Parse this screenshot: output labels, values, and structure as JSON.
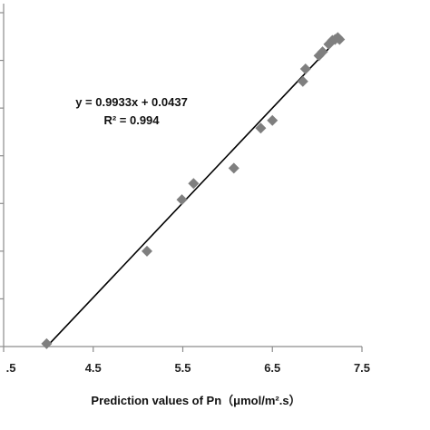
{
  "chart_data": {
    "type": "scatter",
    "title": "",
    "xlabel": "Prediction values of Pn（μmol/m².s）",
    "ylabel": "",
    "xlim": [
      3.5,
      7.5
    ],
    "ylim": [
      4.0,
      7.5
    ],
    "x_ticks": [
      ".5",
      "4.5",
      "5.5",
      "6.5",
      "7.5"
    ],
    "grid": false,
    "legend": "none",
    "marker": "diamond",
    "marker_color": "#7f7f7f",
    "trendline": {
      "type": "linear",
      "slope": 0.9933,
      "intercept": 0.0437,
      "equation": "y = 0.9933x + 0.0437",
      "r_squared": "R² = 0.994",
      "color": "#000000"
    },
    "points": [
      {
        "x": 3.98,
        "y": 4.03
      },
      {
        "x": 5.1,
        "y": 5.0
      },
      {
        "x": 5.49,
        "y": 5.54
      },
      {
        "x": 5.62,
        "y": 5.71
      },
      {
        "x": 6.07,
        "y": 5.87
      },
      {
        "x": 6.37,
        "y": 6.29
      },
      {
        "x": 6.5,
        "y": 6.37
      },
      {
        "x": 6.84,
        "y": 6.78
      },
      {
        "x": 6.87,
        "y": 6.91
      },
      {
        "x": 7.02,
        "y": 7.05
      },
      {
        "x": 7.06,
        "y": 7.09
      },
      {
        "x": 7.13,
        "y": 7.17
      },
      {
        "x": 7.17,
        "y": 7.21
      },
      {
        "x": 7.2,
        "y": 7.22
      },
      {
        "x": 7.23,
        "y": 7.24
      },
      {
        "x": 7.25,
        "y": 7.22
      }
    ]
  }
}
